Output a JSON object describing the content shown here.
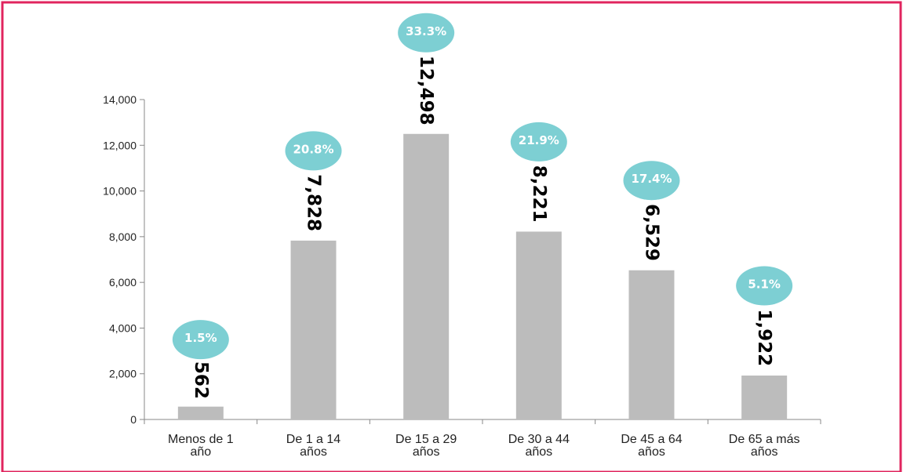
{
  "colors": {
    "frame": "#e0245e",
    "bar": "#bcbcbc",
    "bubble": "#7dcfd3",
    "axis": "#888888",
    "label": "#000000"
  },
  "chart_data": {
    "type": "bar",
    "title": "",
    "xlabel": "",
    "ylabel": "",
    "categories": [
      [
        "Menos de 1",
        "año"
      ],
      [
        "De 1 a 14",
        "años"
      ],
      [
        "De 15 a 29",
        "años"
      ],
      [
        "De 30 a 44",
        "años"
      ],
      [
        "De 45 a 64",
        "años"
      ],
      [
        "De 65 a más",
        "años"
      ]
    ],
    "values": [
      562,
      7828,
      12498,
      8221,
      6529,
      1922
    ],
    "value_labels": [
      "562",
      "7,828",
      "12,498",
      "8,221",
      "6,529",
      "1,922"
    ],
    "percent_labels": [
      "1.5%",
      "20.8%",
      "33.3%",
      "21.9%",
      "17.4%",
      "5.1%"
    ],
    "ylim": [
      0,
      14000
    ],
    "yticks": [
      0,
      2000,
      4000,
      6000,
      8000,
      10000,
      12000,
      14000
    ],
    "ytick_labels": [
      "0",
      "2,000",
      "4,000",
      "6,000",
      "8,000",
      "10,000",
      "12,000",
      "14,000"
    ],
    "grid": false,
    "legend": "none"
  }
}
